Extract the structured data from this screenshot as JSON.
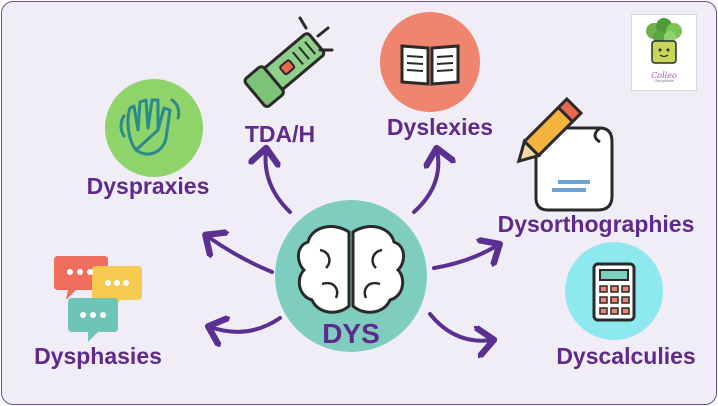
{
  "center": {
    "label": "DYS"
  },
  "nodes": [
    {
      "id": "tdah",
      "label": "TDA/H",
      "icon": "flashlight-icon"
    },
    {
      "id": "dyslexies",
      "label": "Dyslexies",
      "icon": "open-book-icon"
    },
    {
      "id": "dyspraxies",
      "label": "Dyspraxies",
      "icon": "waving-hand-icon"
    },
    {
      "id": "dysorthographies",
      "label": "Dysorthographies",
      "icon": "pencil-paper-icon"
    },
    {
      "id": "dysphasies",
      "label": "Dysphasies",
      "icon": "speech-bubbles-icon"
    },
    {
      "id": "dyscalculies",
      "label": "Dyscalculies",
      "icon": "calculator-icon"
    }
  ],
  "brand": {
    "name": "Colleo",
    "tagline": "Orthophonie"
  },
  "colors": {
    "frame": "#f1edf6",
    "border": "#6a4c9c",
    "label": "#5e2a8c",
    "arrow": "#5a3192",
    "center_circle": "#7fcdbf",
    "book_circle": "#f0856f",
    "hand_circle": "#8fd46a",
    "calc_circle": "#8ee8f0"
  }
}
